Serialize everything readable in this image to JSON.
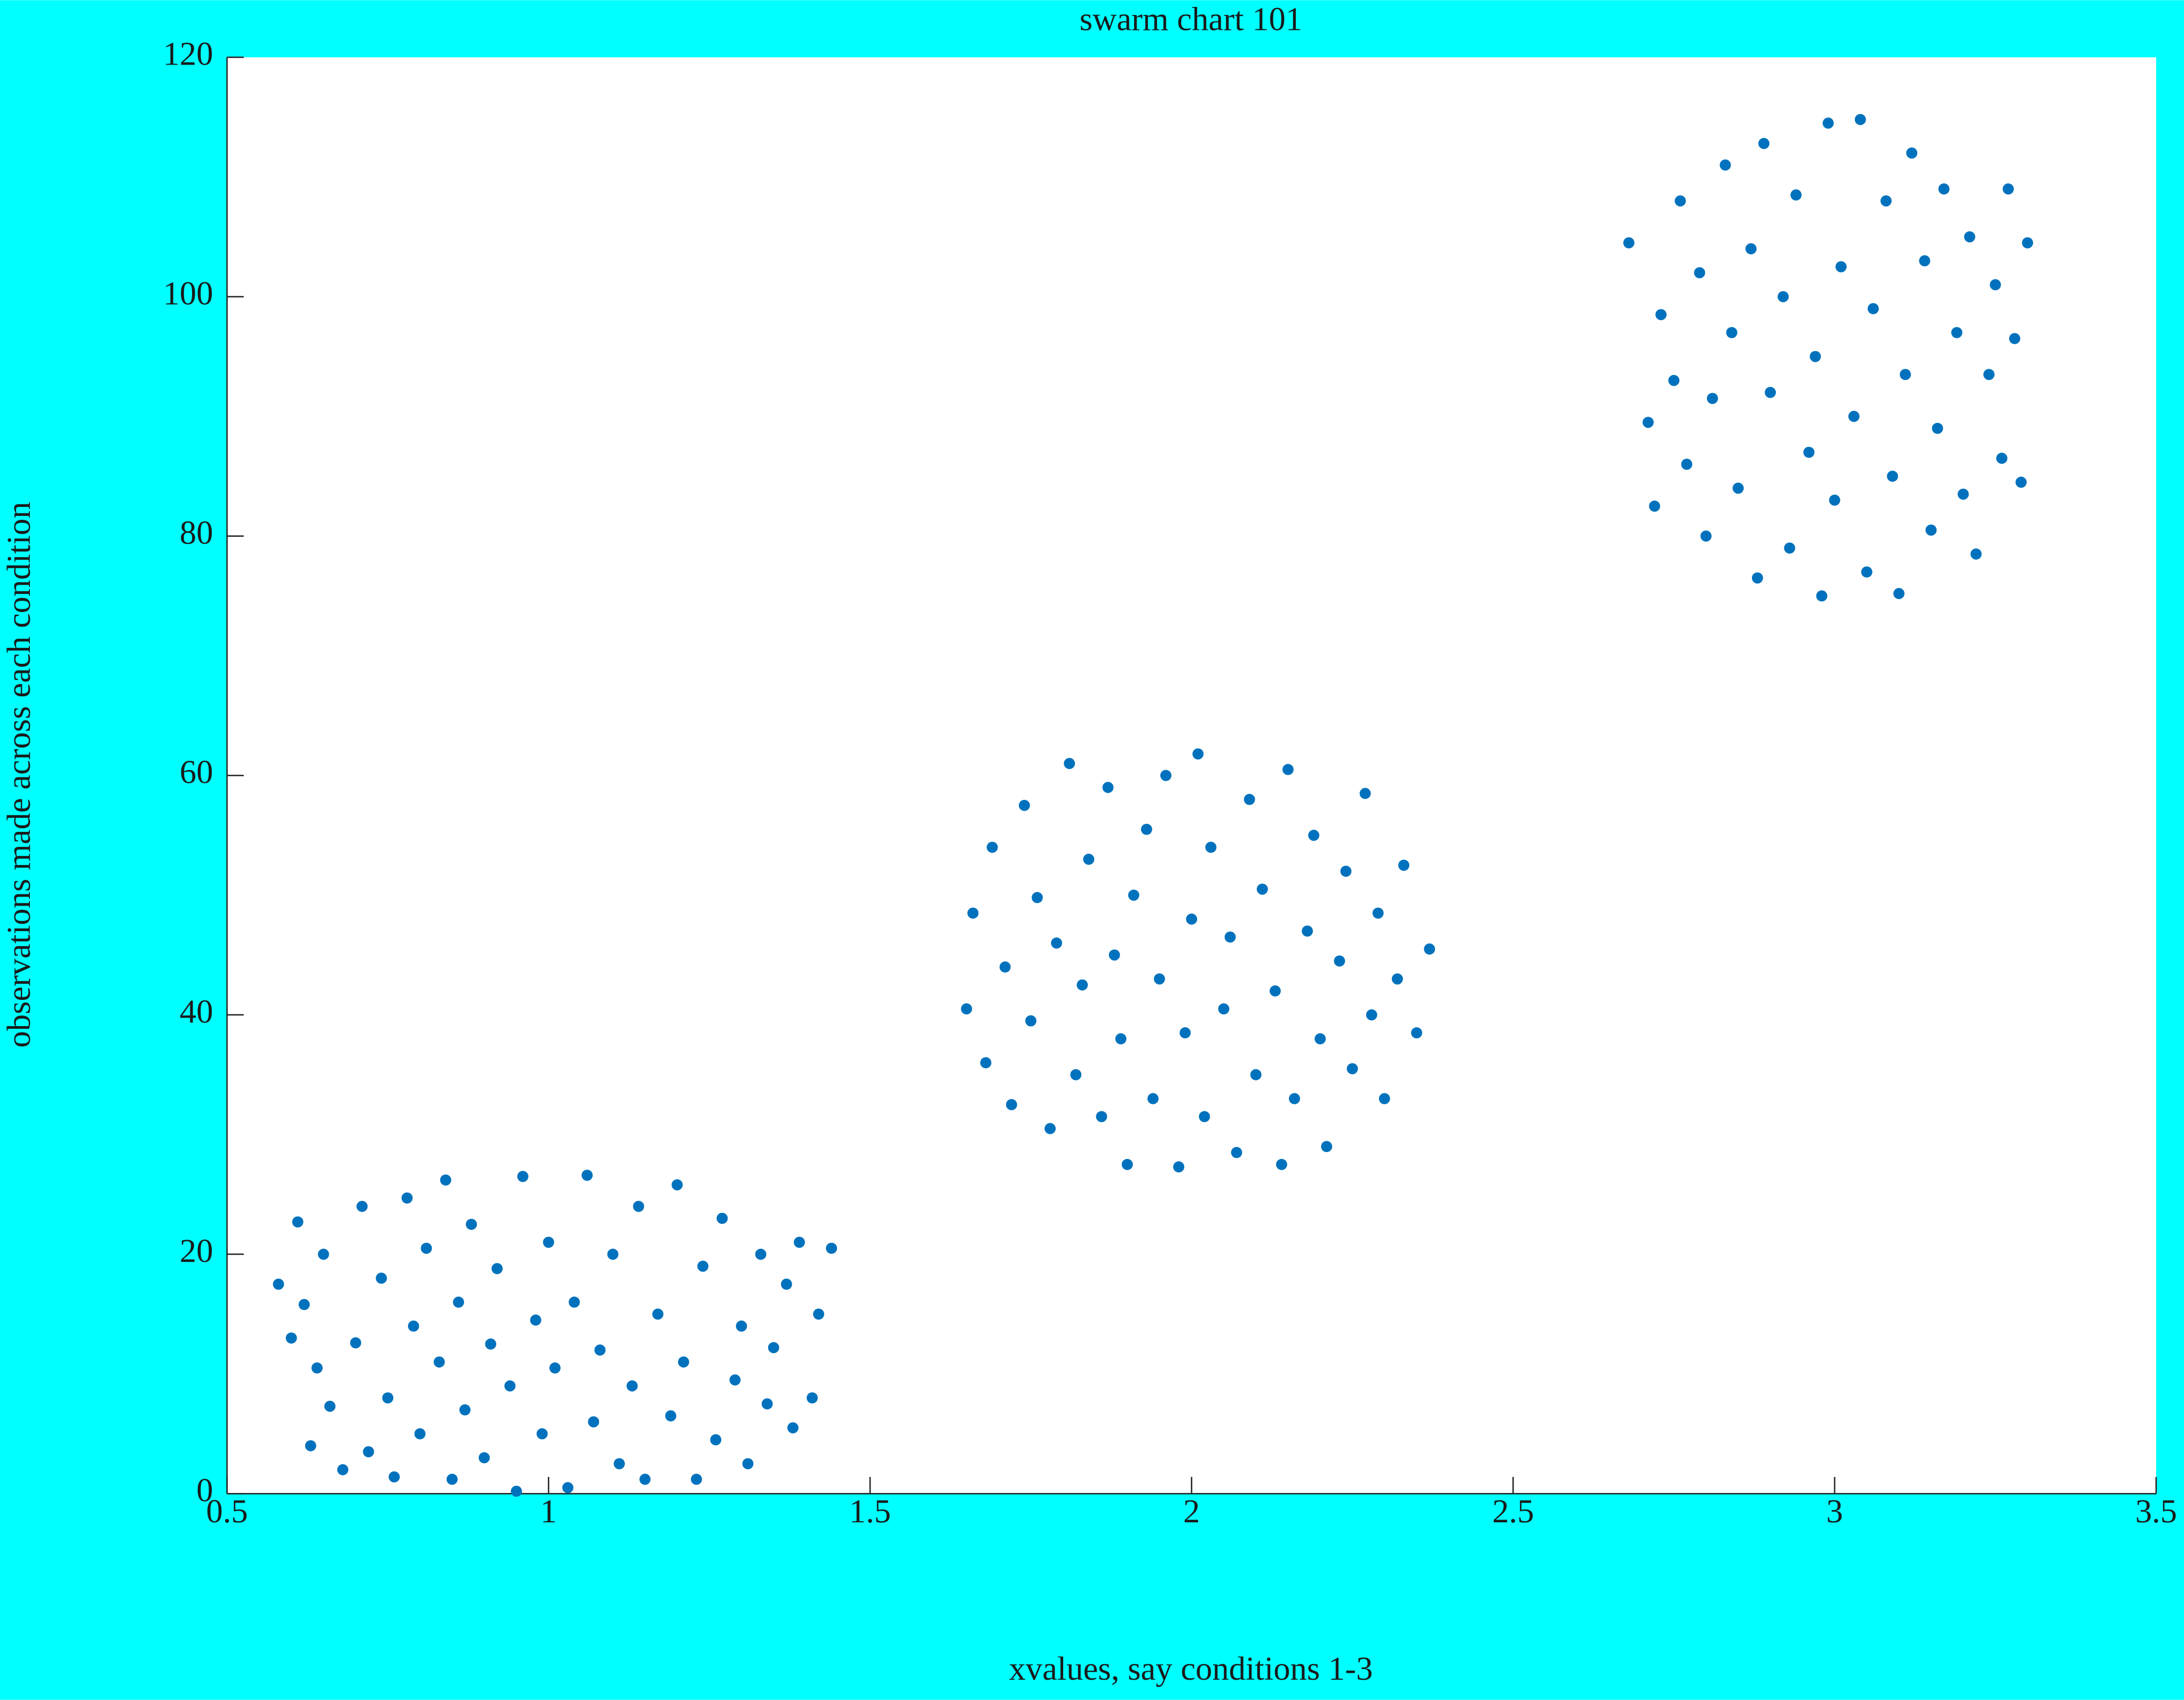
{
  "chart_data": {
    "type": "scatter",
    "title": "swarm chart 101",
    "xlabel": "xvalues, say conditions 1-3",
    "ylabel": "observations made across each condition",
    "xlim": [
      0.5,
      3.5
    ],
    "xticks": [
      0.5,
      1,
      1.5,
      2,
      2.5,
      3,
      3.5
    ],
    "ylim": [
      0,
      120
    ],
    "yticks": [
      0,
      20,
      40,
      60,
      80,
      100,
      120
    ],
    "background": "#00ffff",
    "color": "#0072bd",
    "series": [
      {
        "x": [
          0.58,
          0.6,
          0.61,
          0.62,
          0.63,
          0.64,
          0.65,
          0.66,
          0.68,
          0.7,
          0.71,
          0.72,
          0.74,
          0.75,
          0.76,
          0.78,
          0.79,
          0.8,
          0.81,
          0.83,
          0.84,
          0.85,
          0.86,
          0.87,
          0.88,
          0.9,
          0.91,
          0.92,
          0.94,
          0.95,
          0.96,
          0.98,
          0.99,
          1.0,
          1.01,
          1.03,
          1.04,
          1.06,
          1.07,
          1.08,
          1.1,
          1.11,
          1.13,
          1.14,
          1.15,
          1.17,
          1.19,
          1.2,
          1.21,
          1.23,
          1.24,
          1.26,
          1.27,
          1.29,
          1.3,
          1.31,
          1.33,
          1.34,
          1.35,
          1.37,
          1.38,
          1.39,
          1.41,
          1.42,
          1.44
        ],
        "y": [
          17.5,
          13,
          22.7,
          15.8,
          4,
          10.5,
          20,
          7.3,
          2,
          12.6,
          24,
          3.5,
          18,
          8,
          1.4,
          24.7,
          14,
          5,
          20.5,
          11,
          26.2,
          1.2,
          16,
          7,
          22.5,
          3,
          12.5,
          18.8,
          9,
          0.2,
          26.5,
          14.5,
          5,
          21,
          10.5,
          0.5,
          16,
          26.6,
          6,
          12,
          20,
          2.5,
          9,
          24,
          1.2,
          15,
          6.5,
          25.8,
          11,
          1.2,
          19,
          4.5,
          23,
          9.5,
          14,
          2.5,
          20,
          7.5,
          12.2,
          17.5,
          5.5,
          21,
          8,
          15,
          20.5
        ]
      },
      {
        "x": [
          1.65,
          1.66,
          1.68,
          1.69,
          1.71,
          1.72,
          1.74,
          1.75,
          1.76,
          1.78,
          1.79,
          1.81,
          1.82,
          1.83,
          1.84,
          1.86,
          1.87,
          1.88,
          1.89,
          1.9,
          1.91,
          1.93,
          1.94,
          1.95,
          1.96,
          1.98,
          1.99,
          2.0,
          2.01,
          2.02,
          2.03,
          2.05,
          2.06,
          2.07,
          2.09,
          2.1,
          2.11,
          2.13,
          2.14,
          2.15,
          2.16,
          2.18,
          2.19,
          2.2,
          2.21,
          2.23,
          2.24,
          2.25,
          2.27,
          2.28,
          2.29,
          2.3,
          2.32,
          2.33,
          2.35,
          2.37
        ],
        "y": [
          40.5,
          48.5,
          36,
          54,
          44,
          32.5,
          57.5,
          39.5,
          49.8,
          30.5,
          46,
          61,
          35,
          42.5,
          53,
          31.5,
          59,
          45,
          38,
          27.5,
          50,
          55.5,
          33,
          43,
          60,
          27.3,
          38.5,
          48,
          61.8,
          31.5,
          54,
          40.5,
          46.5,
          28.5,
          58,
          35,
          50.5,
          42,
          27.5,
          60.5,
          33,
          47,
          55,
          38,
          29,
          44.5,
          52,
          35.5,
          58.5,
          40,
          48.5,
          33,
          43,
          52.5,
          38.5,
          45.5
        ]
      },
      {
        "x": [
          2.68,
          2.71,
          2.72,
          2.73,
          2.75,
          2.76,
          2.77,
          2.79,
          2.8,
          2.81,
          2.83,
          2.84,
          2.85,
          2.87,
          2.88,
          2.89,
          2.9,
          2.92,
          2.93,
          2.94,
          2.96,
          2.97,
          2.98,
          2.99,
          3.0,
          3.01,
          3.03,
          3.04,
          3.05,
          3.06,
          3.08,
          3.09,
          3.1,
          3.11,
          3.12,
          3.14,
          3.15,
          3.16,
          3.17,
          3.19,
          3.2,
          3.21,
          3.22,
          3.24,
          3.25,
          3.26,
          3.27,
          3.28,
          3.29,
          3.3
        ],
        "y": [
          104.5,
          89.5,
          82.5,
          98.5,
          93,
          108,
          86,
          102,
          80,
          91.5,
          111,
          97,
          84,
          104,
          76.5,
          112.8,
          92,
          100,
          79,
          108.5,
          87,
          95,
          75,
          114.5,
          83,
          102.5,
          90,
          114.8,
          77,
          99,
          108,
          85,
          75.2,
          93.5,
          112,
          103,
          80.5,
          89,
          109,
          97,
          83.5,
          105,
          78.5,
          93.5,
          101,
          86.5,
          109,
          96.5,
          84.5,
          104.5
        ]
      }
    ]
  }
}
